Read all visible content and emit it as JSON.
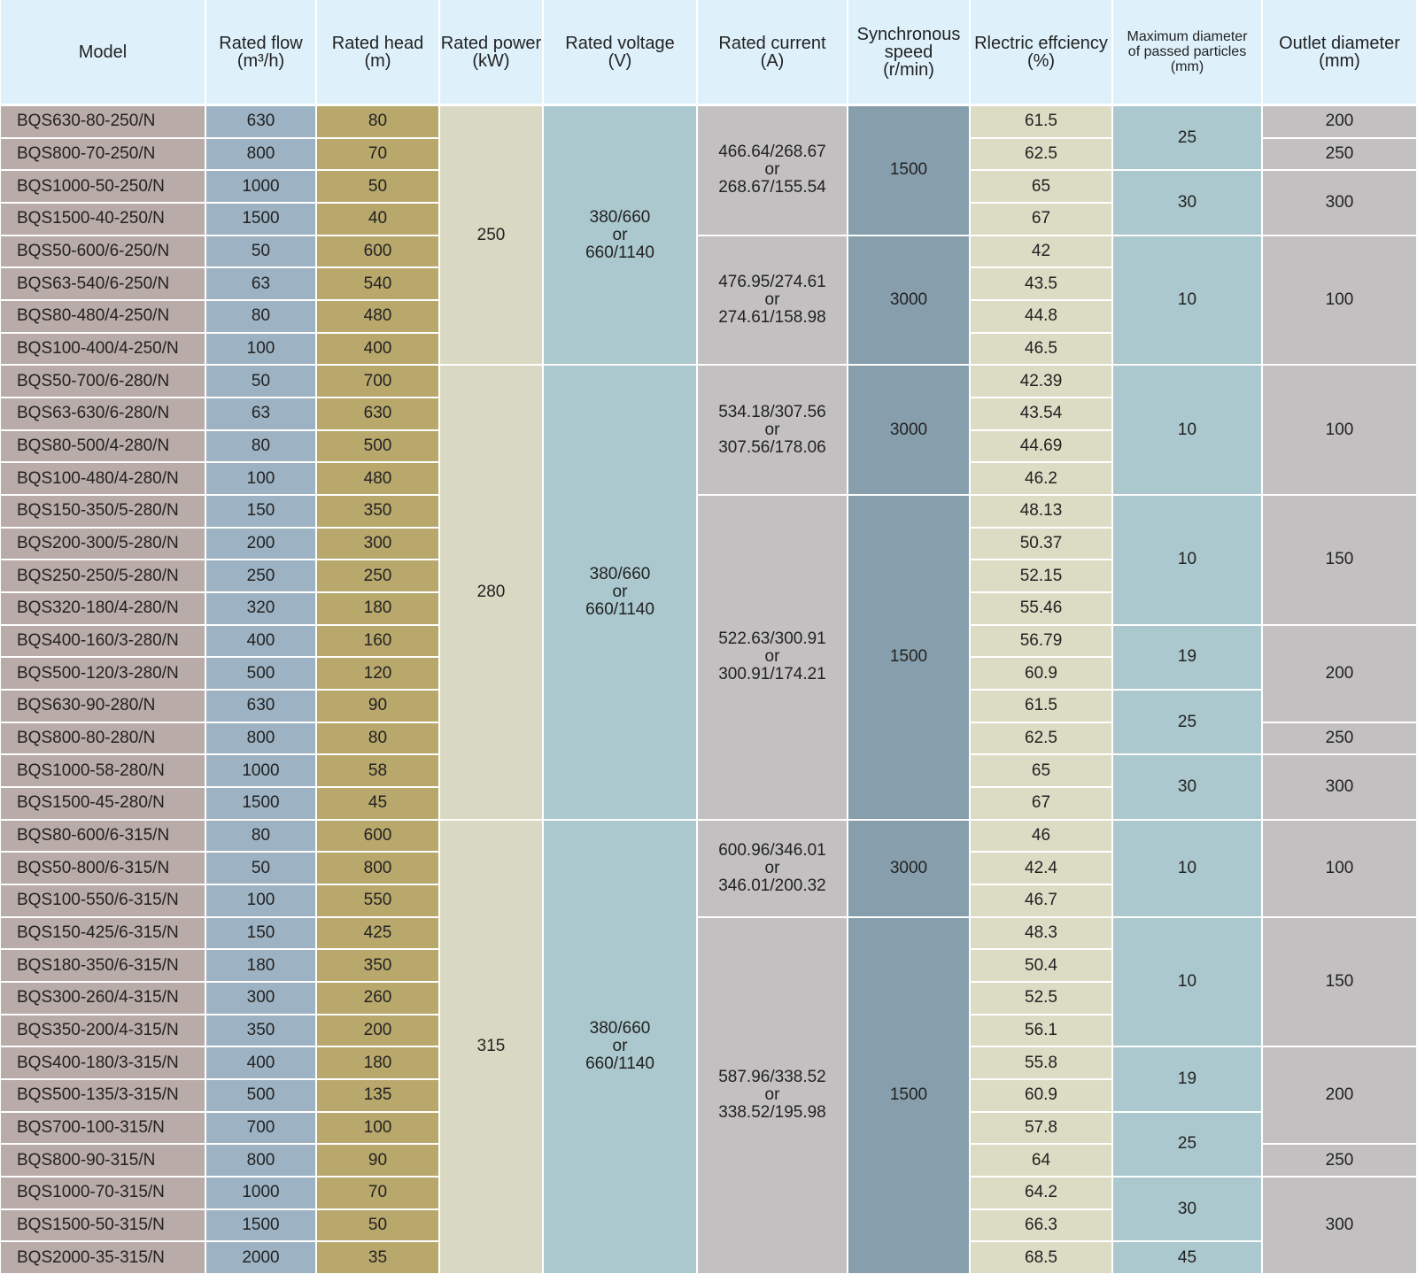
{
  "table": {
    "columns": [
      "Model",
      "Rated flow\n(m³/h)",
      "Rated head\n(m)",
      "Rated power\n(kW)",
      "Rated voltage\n(V)",
      "Rated current\n(A)",
      "Synchronous\nspeed\n(r/min)",
      "Rlectric effciency\n(%)",
      "Maximum diameter\nof passed particles\n(mm)",
      "Outlet diameter\n(mm)"
    ],
    "rows": [
      [
        "BQS630-80-250/N",
        "630",
        "80",
        "61.5"
      ],
      [
        "BQS800-70-250/N",
        "800",
        "70",
        "62.5"
      ],
      [
        "BQS1000-50-250/N",
        "1000",
        "50",
        "65"
      ],
      [
        "BQS1500-40-250/N",
        "1500",
        "40",
        "67"
      ],
      [
        "BQS50-600/6-250/N",
        "50",
        "600",
        "42"
      ],
      [
        "BQS63-540/6-250/N",
        "63",
        "540",
        "43.5"
      ],
      [
        "BQS80-480/4-250/N",
        "80",
        "480",
        "44.8"
      ],
      [
        "BQS100-400/4-250/N",
        "100",
        "400",
        "46.5"
      ],
      [
        "BQS50-700/6-280/N",
        "50",
        "700",
        "42.39"
      ],
      [
        "BQS63-630/6-280/N",
        "63",
        "630",
        "43.54"
      ],
      [
        "BQS80-500/4-280/N",
        "80",
        "500",
        "44.69"
      ],
      [
        "BQS100-480/4-280/N",
        "100",
        "480",
        "46.2"
      ],
      [
        "BQS150-350/5-280/N",
        "150",
        "350",
        "48.13"
      ],
      [
        "BQS200-300/5-280/N",
        "200",
        "300",
        "50.37"
      ],
      [
        "BQS250-250/5-280/N",
        "250",
        "250",
        "52.15"
      ],
      [
        "BQS320-180/4-280/N",
        "320",
        "180",
        "55.46"
      ],
      [
        "BQS400-160/3-280/N",
        "400",
        "160",
        "56.79"
      ],
      [
        "BQS500-120/3-280/N",
        "500",
        "120",
        "60.9"
      ],
      [
        "BQS630-90-280/N",
        "630",
        "90",
        "61.5"
      ],
      [
        "BQS800-80-280/N",
        "800",
        "80",
        "62.5"
      ],
      [
        "BQS1000-58-280/N",
        "1000",
        "58",
        "65"
      ],
      [
        "BQS1500-45-280/N",
        "1500",
        "45",
        "67"
      ],
      [
        "BQS80-600/6-315/N",
        "80",
        "600",
        "46"
      ],
      [
        "BQS50-800/6-315/N",
        "50",
        "800",
        "42.4"
      ],
      [
        "BQS100-550/6-315/N",
        "100",
        "550",
        "46.7"
      ],
      [
        "BQS150-425/6-315/N",
        "150",
        "425",
        "48.3"
      ],
      [
        "BQS180-350/6-315/N",
        "180",
        "350",
        "50.4"
      ],
      [
        "BQS300-260/4-315/N",
        "300",
        "260",
        "52.5"
      ],
      [
        "BQS350-200/4-315/N",
        "350",
        "200",
        "56.1"
      ],
      [
        "BQS400-180/3-315/N",
        "400",
        "180",
        "55.8"
      ],
      [
        "BQS500-135/3-315/N",
        "500",
        "135",
        "60.9"
      ],
      [
        "BQS700-100-315/N",
        "700",
        "100",
        "57.8"
      ],
      [
        "BQS800-90-315/N",
        "800",
        "90",
        "64"
      ],
      [
        "BQS1000-70-315/N",
        "1000",
        "70",
        "64.2"
      ],
      [
        "BQS1500-50-315/N",
        "1500",
        "50",
        "66.3"
      ],
      [
        "BQS2000-35-315/N",
        "2000",
        "35",
        "68.5"
      ]
    ],
    "power": [
      {
        "text": "250",
        "rowspan": 8
      },
      {
        "text": "280",
        "rowspan": 14
      },
      {
        "text": "315",
        "rowspan": 14
      }
    ],
    "voltage": [
      {
        "text": "380/660\nor\n660/1140",
        "rowspan": 8
      },
      {
        "text": "380/660\nor\n660/1140",
        "rowspan": 14
      },
      {
        "text": "380/660\nor\n660/1140",
        "rowspan": 14
      }
    ],
    "current": [
      {
        "text": "466.64/268.67\nor\n268.67/155.54",
        "rowspan": 4
      },
      {
        "text": "476.95/274.61\nor\n274.61/158.98",
        "rowspan": 4
      },
      {
        "text": "534.18/307.56\nor\n307.56/178.06",
        "rowspan": 4
      },
      {
        "text": "522.63/300.91\nor\n300.91/174.21",
        "rowspan": 10
      },
      {
        "text": "600.96/346.01\nor\n346.01/200.32",
        "rowspan": 3
      },
      {
        "text": "587.96/338.52\nor\n338.52/195.98",
        "rowspan": 11
      }
    ],
    "speed": [
      {
        "text": "1500",
        "rowspan": 4
      },
      {
        "text": "3000",
        "rowspan": 4
      },
      {
        "text": "3000",
        "rowspan": 4
      },
      {
        "text": "1500",
        "rowspan": 10
      },
      {
        "text": "3000",
        "rowspan": 3
      },
      {
        "text": "1500",
        "rowspan": 11
      }
    ],
    "particles": [
      {
        "text": "25",
        "rowspan": 2
      },
      {
        "text": "30",
        "rowspan": 2
      },
      {
        "text": "10",
        "rowspan": 4
      },
      {
        "text": "10",
        "rowspan": 4
      },
      {
        "text": "10",
        "rowspan": 4
      },
      {
        "text": "19",
        "rowspan": 2
      },
      {
        "text": "25",
        "rowspan": 2
      },
      {
        "text": "30",
        "rowspan": 2
      },
      {
        "text": "10",
        "rowspan": 3
      },
      {
        "text": "10",
        "rowspan": 4
      },
      {
        "text": "19",
        "rowspan": 2
      },
      {
        "text": "25",
        "rowspan": 2
      },
      {
        "text": "30",
        "rowspan": 2
      },
      {
        "text": "45",
        "rowspan": 1
      }
    ],
    "outlet": [
      {
        "text": "200",
        "rowspan": 1
      },
      {
        "text": "250",
        "rowspan": 1
      },
      {
        "text": "300",
        "rowspan": 2
      },
      {
        "text": "100",
        "rowspan": 4
      },
      {
        "text": "100",
        "rowspan": 4
      },
      {
        "text": "150",
        "rowspan": 4
      },
      {
        "text": "200",
        "rowspan": 3
      },
      {
        "text": "250",
        "rowspan": 1
      },
      {
        "text": "300",
        "rowspan": 2
      },
      {
        "text": "100",
        "rowspan": 3
      },
      {
        "text": "150",
        "rowspan": 4
      },
      {
        "text": "200",
        "rowspan": 3
      },
      {
        "text": "250",
        "rowspan": 1
      },
      {
        "text": "300",
        "rowspan": 3
      }
    ]
  }
}
